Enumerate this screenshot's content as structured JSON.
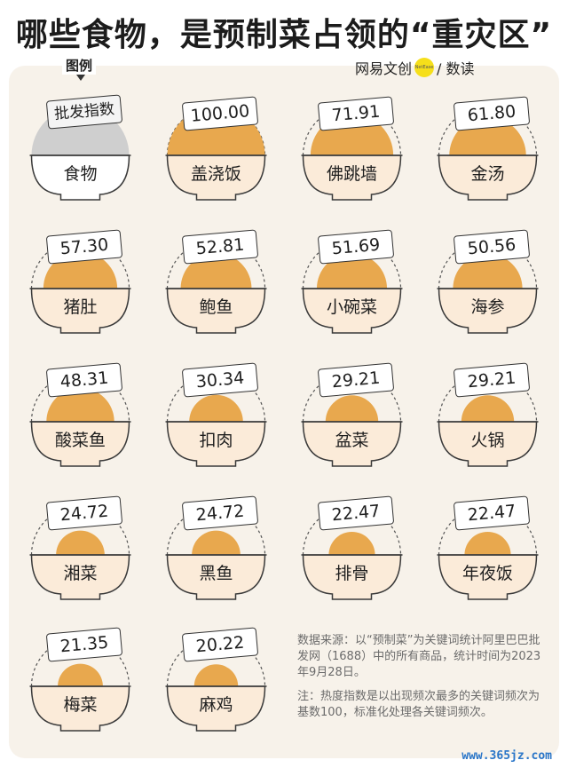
{
  "title": "哪些食物，是预制菜占领的“重灾区”",
  "legend": {
    "label": "图例",
    "tag": "批发指数",
    "food": "食物"
  },
  "brand": {
    "left": "网易文创",
    "dot": "NetEase",
    "right": "/ 数读"
  },
  "colors": {
    "fill": "#e8a84e",
    "bowl": "#fbebd9",
    "outline": "#3a3a3a",
    "legend_fill": "#cfcfcf"
  },
  "chart_data": {
    "type": "bar",
    "xlabel": "",
    "ylabel": "",
    "ylim": [
      0,
      100
    ],
    "categories": [
      "盖浇饭",
      "佛跳墙",
      "金汤",
      "猪肚",
      "鲍鱼",
      "小碗菜",
      "海参",
      "酸菜鱼",
      "扣肉",
      "盆菜",
      "火锅",
      "湘菜",
      "黑鱼",
      "排骨",
      "年夜饭",
      "梅菜",
      "麻鸡"
    ],
    "values": [
      100.0,
      71.91,
      61.8,
      57.3,
      52.81,
      51.69,
      50.56,
      48.31,
      30.34,
      29.21,
      29.21,
      24.72,
      24.72,
      22.47,
      22.47,
      21.35,
      20.22
    ],
    "labels": [
      "100.00",
      "71.91",
      "61.80",
      "57.30",
      "52.81",
      "51.69",
      "50.56",
      "48.31",
      "30.34",
      "29.21",
      "29.21",
      "24.72",
      "24.72",
      "22.47",
      "22.47",
      "21.35",
      "20.22"
    ]
  },
  "notes": {
    "source": "数据来源：以“预制菜”为关键词统计阿里巴巴批发网（1688）中的所有商品，统计时间为2023年9月28日。",
    "note": "注：热度指数是以出现频次最多的关键词频次为基数100，标准化处理各关键词频次。"
  },
  "watermark": "www.365jz.com"
}
